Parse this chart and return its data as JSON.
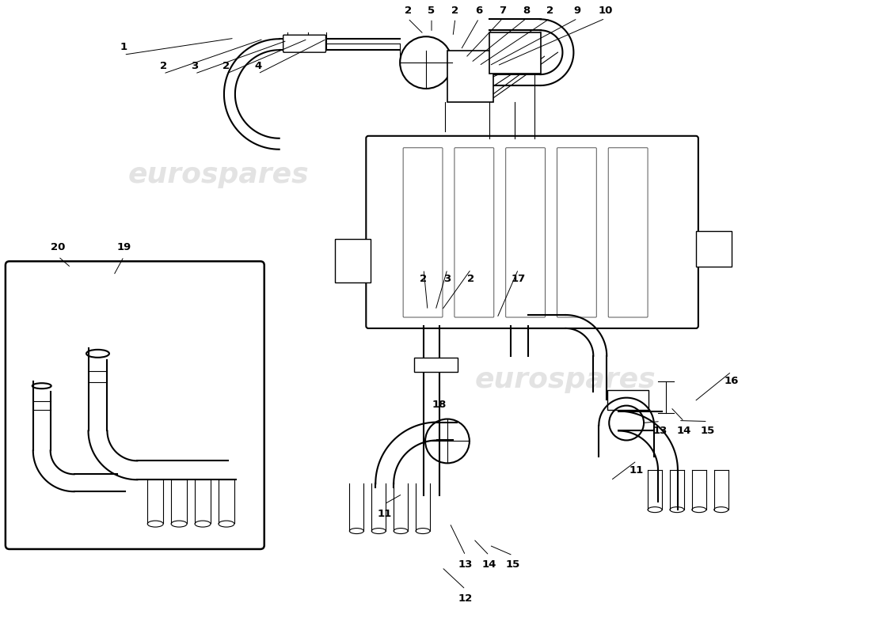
{
  "bg_color": "#ffffff",
  "line_color": "#000000",
  "watermark_text": "eurospares",
  "fig_width": 11.0,
  "fig_height": 8.0,
  "dpi": 100
}
